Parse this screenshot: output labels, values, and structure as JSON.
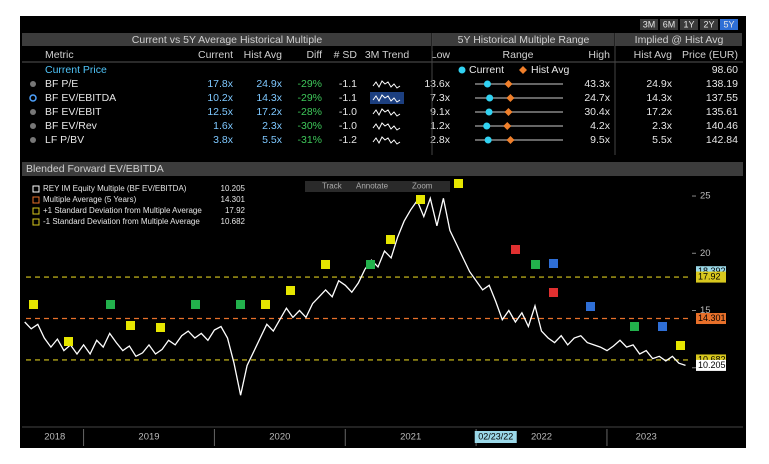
{
  "toolbar": {
    "periods": [
      "3M",
      "6M",
      "1Y",
      "2Y",
      "5Y"
    ],
    "selected": 4
  },
  "table": {
    "group_headers": [
      "Current vs 5Y Average Historical Multiple",
      "5Y Historical Multiple Range",
      "Implied @ Hist Avg"
    ],
    "columns": [
      "Metric",
      "Current",
      "Hist Avg",
      "Diff",
      "# SD",
      "3M Trend",
      "Low",
      "Range",
      "High",
      "Hist Avg",
      "Price (EUR)"
    ],
    "current_price": {
      "label": "Current Price",
      "value": "98.60"
    },
    "range_legend": [
      "Current",
      "Hist Avg"
    ],
    "selected_row": 1,
    "rows": [
      [
        "BF P/E",
        "17.8x",
        "24.9x",
        "-29%",
        "-1.1",
        "13.6x",
        "43.3x",
        "24.9x",
        "138.19"
      ],
      [
        "BF EV/EBITDA",
        "10.2x",
        "14.3x",
        "-29%",
        "-1.1",
        "7.3x",
        "24.7x",
        "14.3x",
        "137.55"
      ],
      [
        "BF EV/EBIT",
        "12.5x",
        "17.2x",
        "-28%",
        "-1.0",
        "9.1x",
        "30.4x",
        "17.2x",
        "135.61"
      ],
      [
        "BF EV/Rev",
        "1.6x",
        "2.3x",
        "-30%",
        "-1.0",
        "1.2x",
        "4.2x",
        "2.3x",
        "140.46"
      ],
      [
        "LF P/BV",
        "3.8x",
        "5.5x",
        "-31%",
        "-1.2",
        "2.8x",
        "9.5x",
        "5.5x",
        "142.84"
      ]
    ]
  },
  "chart_data": {
    "type": "line",
    "title": "Blended Forward EV/EBITDA",
    "tools": [
      "Track",
      "Annotate",
      "Zoom"
    ],
    "xlim": [
      2018.56,
      2023.65
    ],
    "ylim": [
      5,
      26.4
    ],
    "yticks": [
      10,
      15,
      20,
      25
    ],
    "xticks": [
      {
        "value": 2018.78,
        "label": "2018"
      },
      {
        "value": 2019.5,
        "label": "2019"
      },
      {
        "value": 2020.5,
        "label": "2020"
      },
      {
        "value": 2021.5,
        "label": "2021"
      },
      {
        "value": 2022.5,
        "label": "2022"
      },
      {
        "value": 2023.3,
        "label": "2023"
      }
    ],
    "year_boundaries": [
      2019,
      2020,
      2021,
      2022,
      2023
    ],
    "cursor": {
      "x": 2022.15,
      "label": "02/23/22"
    },
    "series": [
      {
        "name": "REY IM Equity Multiple (BF EV/EBITDA)",
        "color": "#ffffff",
        "x": [
          2018.55,
          2018.6,
          2018.65,
          2018.7,
          2018.75,
          2018.8,
          2018.85,
          2018.9,
          2018.95,
          2019.0,
          2019.05,
          2019.1,
          2019.15,
          2019.2,
          2019.25,
          2019.3,
          2019.35,
          2019.4,
          2019.45,
          2019.5,
          2019.55,
          2019.6,
          2019.65,
          2019.7,
          2019.75,
          2019.8,
          2019.85,
          2019.9,
          2019.95,
          2020.0,
          2020.05,
          2020.1,
          2020.15,
          2020.2,
          2020.25,
          2020.3,
          2020.35,
          2020.4,
          2020.45,
          2020.5,
          2020.55,
          2020.6,
          2020.65,
          2020.7,
          2020.75,
          2020.8,
          2020.85,
          2020.9,
          2020.95,
          2021.0,
          2021.05,
          2021.1,
          2021.15,
          2021.2,
          2021.25,
          2021.3,
          2021.35,
          2021.4,
          2021.45,
          2021.5,
          2021.55,
          2021.6,
          2021.65,
          2021.7,
          2021.75,
          2021.8,
          2021.85,
          2021.9,
          2021.95,
          2022.0,
          2022.05,
          2022.1,
          2022.15,
          2022.2,
          2022.25,
          2022.3,
          2022.35,
          2022.4,
          2022.45,
          2022.5,
          2022.55,
          2022.6,
          2022.65,
          2022.7,
          2022.75,
          2022.8,
          2022.85,
          2022.9,
          2022.95,
          2023.0,
          2023.05,
          2023.1,
          2023.15,
          2023.2,
          2023.25,
          2023.3,
          2023.35,
          2023.4,
          2023.45,
          2023.5,
          2023.55,
          2023.6
        ],
        "values": [
          14.0,
          13.4,
          13.8,
          12.6,
          11.8,
          12.5,
          11.5,
          12.0,
          11.2,
          12.0,
          11.2,
          12.4,
          11.8,
          13.0,
          12.2,
          11.5,
          11.9,
          11.0,
          11.3,
          12.0,
          11.2,
          11.6,
          12.4,
          12.0,
          12.8,
          13.2,
          12.6,
          13.0,
          12.4,
          13.3,
          13.6,
          12.6,
          10.4,
          7.6,
          10.2,
          11.4,
          12.6,
          13.8,
          13.2,
          14.2,
          15.2,
          14.4,
          15.0,
          14.4,
          15.6,
          16.2,
          16.8,
          16.2,
          17.6,
          17.2,
          16.6,
          17.4,
          18.6,
          19.4,
          18.8,
          20.2,
          19.6,
          21.4,
          22.8,
          23.8,
          24.6,
          23.2,
          24.8,
          22.4,
          24.8,
          22.0,
          20.8,
          19.6,
          18.4,
          17.6,
          16.8,
          17.2,
          15.8,
          14.2,
          15.0,
          14.0,
          14.8,
          13.6,
          15.4,
          13.2,
          12.6,
          12.2,
          12.8,
          12.0,
          12.6,
          12.8,
          12.2,
          12.0,
          11.8,
          11.5,
          11.9,
          12.4,
          11.8,
          12.0,
          11.2,
          11.5,
          10.8,
          11.0,
          10.6,
          11.0,
          10.4,
          10.205
        ]
      }
    ],
    "reference_lines": [
      {
        "name": "Multiple Average (5 Years)",
        "value": 14.301,
        "color": "#e8702a"
      },
      {
        "name": "+1 Standard Deviation from Multiple Average",
        "value": 17.92,
        "color": "#d8c81e"
      },
      {
        "name": "-1 Standard Deviation from Multiple Average",
        "value": 10.682,
        "color": "#d8c81e"
      }
    ],
    "extra_axis_labels": [
      18.392
    ]
  }
}
